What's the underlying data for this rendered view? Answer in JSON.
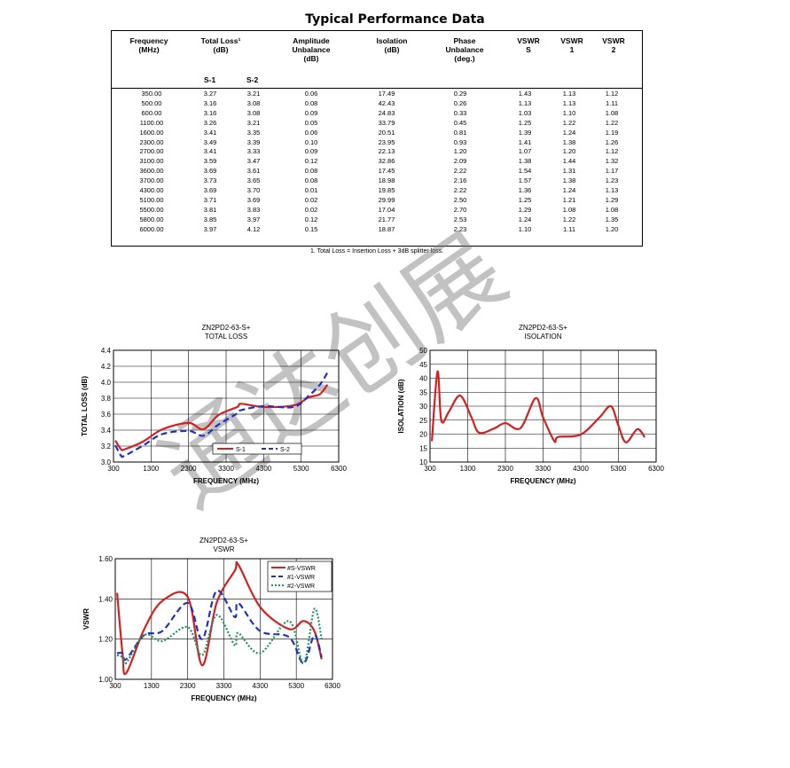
{
  "title": "Typical Performance Data",
  "table": {
    "headers": [
      {
        "key": "freq",
        "text": "Frequency\n(MHz)"
      },
      {
        "key": "tl",
        "text": "Total Loss¹\n(dB)"
      },
      {
        "key": "amp",
        "text": "Amplitude\nUnbalance\n(dB)"
      },
      {
        "key": "iso",
        "text": "Isolation\n(dB)"
      },
      {
        "key": "phase",
        "text": "Phase\nUnbalance\n(deg.)"
      },
      {
        "key": "vs",
        "text": "VSWR\nS"
      },
      {
        "key": "v1",
        "text": "VSWR\n1"
      },
      {
        "key": "v2",
        "text": "VSWR\n2"
      }
    ],
    "subheaders": [
      "S-1",
      "S-2"
    ],
    "rows": [
      [
        "350.00",
        "3.27",
        "3.21",
        "0.06",
        "17.49",
        "0.29",
        "1.43",
        "1.13",
        "1.12"
      ],
      [
        "500.00",
        "3.16",
        "3.08",
        "0.08",
        "42.43",
        "0.26",
        "1.13",
        "1.13",
        "1.11"
      ],
      [
        "600.00",
        "3.16",
        "3.08",
        "0.09",
        "24.83",
        "0.33",
        "1.03",
        "1.10",
        "1.08"
      ],
      [
        "1100.00",
        "3.26",
        "3.21",
        "0.05",
        "33.79",
        "0.45",
        "1.25",
        "1.22",
        "1.22"
      ],
      [
        "1600.00",
        "3.41",
        "3.35",
        "0.06",
        "20.51",
        "0.81",
        "1.39",
        "1.24",
        "1.19"
      ],
      [
        "2300.00",
        "3.49",
        "3.39",
        "0.10",
        "23.95",
        "0.93",
        "1.41",
        "1.38",
        "1.26"
      ],
      [
        "2700.00",
        "3.41",
        "3.33",
        "0.09",
        "22.13",
        "1.20",
        "1.07",
        "1.20",
        "1.12"
      ],
      [
        "3100.00",
        "3.59",
        "3.47",
        "0.12",
        "32.86",
        "2.09",
        "1.38",
        "1.44",
        "1.32"
      ],
      [
        "3600.00",
        "3.69",
        "3.61",
        "0.08",
        "17.45",
        "2.22",
        "1.54",
        "1.31",
        "1.17"
      ],
      [
        "3700.00",
        "3.73",
        "3.65",
        "0.08",
        "18.98",
        "2.16",
        "1.57",
        "1.38",
        "1.23"
      ],
      [
        "4300.00",
        "3.69",
        "3.70",
        "0.01",
        "19.85",
        "2.22",
        "1.36",
        "1.24",
        "1.13"
      ],
      [
        "5100.00",
        "3.71",
        "3.69",
        "0.02",
        "29.99",
        "2.50",
        "1.25",
        "1.21",
        "1.29"
      ],
      [
        "5500.00",
        "3.81",
        "3.83",
        "0.02",
        "17.04",
        "2.70",
        "1.29",
        "1.08",
        "1.08"
      ],
      [
        "5800.00",
        "3.85",
        "3.97",
        "0.12",
        "21.77",
        "2.53",
        "1.24",
        "1.22",
        "1.35"
      ],
      [
        "6000.00",
        "3.97",
        "4.12",
        "0.15",
        "18.87",
        "2.23",
        "1.10",
        "1.11",
        "1.20"
      ]
    ],
    "footnote": "1. Total Loss = Insertion Loss + 3dB splitter loss."
  },
  "watermark": "通达创展",
  "chart_data": [
    {
      "type": "line",
      "title": "ZN2PD2-63-S+\nTOTAL LOSS",
      "xlabel": "FREQUENCY (MHz)",
      "ylabel": "TOTAL LOSS (dB)",
      "xlim": [
        300,
        6300
      ],
      "ylim": [
        3.0,
        4.4
      ],
      "xticks": [
        300,
        1300,
        2300,
        3300,
        4300,
        5300,
        6300
      ],
      "yticks": [
        3.0,
        3.2,
        3.4,
        3.6,
        3.8,
        4.0,
        4.2,
        4.4
      ],
      "ytick_labels": [
        "3.0",
        "3.2",
        "3.4",
        "3.6",
        "3.8",
        "4.0",
        "4.2",
        "4.4"
      ],
      "grid": true,
      "legend": "bottom-center",
      "series": [
        {
          "name": "S-1",
          "color": "#d42020",
          "dash": "solid",
          "x": [
            350,
            500,
            600,
            1100,
            1600,
            2300,
            2700,
            3100,
            3600,
            3700,
            4300,
            5100,
            5500,
            5800,
            6000
          ],
          "y": [
            3.27,
            3.16,
            3.16,
            3.26,
            3.41,
            3.49,
            3.41,
            3.59,
            3.69,
            3.73,
            3.69,
            3.71,
            3.81,
            3.85,
            3.97
          ]
        },
        {
          "name": "S-2",
          "color": "#2030c0",
          "dash": "dashed",
          "x": [
            350,
            500,
            600,
            1100,
            1600,
            2300,
            2700,
            3100,
            3600,
            3700,
            4300,
            5100,
            5500,
            5800,
            6000
          ],
          "y": [
            3.21,
            3.08,
            3.08,
            3.21,
            3.35,
            3.39,
            3.33,
            3.47,
            3.61,
            3.65,
            3.7,
            3.69,
            3.83,
            3.97,
            4.12
          ]
        }
      ]
    },
    {
      "type": "line",
      "title": "ZN2PD2-63-S+\nISOLATION",
      "xlabel": "FREQUENCY (MHz)",
      "ylabel": "ISOLATION (dB)",
      "xlim": [
        300,
        6300
      ],
      "ylim": [
        10,
        50
      ],
      "xticks": [
        300,
        1300,
        2300,
        3300,
        4300,
        5300,
        6300
      ],
      "yticks": [
        10,
        15,
        20,
        25,
        30,
        35,
        40,
        45,
        50
      ],
      "ytick_labels": [
        "10",
        "15",
        "20",
        "25",
        "30",
        "35",
        "40",
        "45",
        "50"
      ],
      "grid": true,
      "series": [
        {
          "color": "#d42020",
          "dash": "solid",
          "x": [
            350,
            500,
            600,
            800,
            1100,
            1400,
            1600,
            2000,
            2300,
            2700,
            3100,
            3300,
            3600,
            3700,
            4300,
            4800,
            5100,
            5300,
            5500,
            5800,
            6000
          ],
          "y": [
            17.49,
            42.43,
            24.83,
            28,
            33.79,
            26,
            20.51,
            22,
            23.95,
            22.13,
            32.86,
            26,
            17.45,
            18.98,
            19.85,
            26,
            29.99,
            23,
            17.04,
            21.77,
            18.87
          ]
        }
      ]
    },
    {
      "type": "line",
      "title": "ZN2PD2-63-S+\nVSWR",
      "xlabel": "FREQUENCY (MHz)",
      "ylabel": "VSWR",
      "xlim": [
        300,
        6300
      ],
      "ylim": [
        1.0,
        1.6
      ],
      "xticks": [
        300,
        1300,
        2300,
        3300,
        4300,
        5300,
        6300
      ],
      "yticks": [
        1.0,
        1.2,
        1.4,
        1.6
      ],
      "ytick_labels": [
        "1.00",
        "1.20",
        "1.40",
        "1.60"
      ],
      "grid": true,
      "legend": "top-right",
      "series": [
        {
          "name": "#S-VSWR",
          "color": "#d42020",
          "dash": "solid",
          "x": [
            350,
            500,
            600,
            1100,
            1600,
            2300,
            2700,
            3100,
            3600,
            3700,
            4300,
            5100,
            5500,
            5800,
            6000
          ],
          "y": [
            1.43,
            1.13,
            1.03,
            1.25,
            1.39,
            1.41,
            1.07,
            1.38,
            1.54,
            1.57,
            1.36,
            1.25,
            1.29,
            1.24,
            1.1
          ]
        },
        {
          "name": "#1-VSWR",
          "color": "#2030c0",
          "dash": "dashed",
          "x": [
            350,
            500,
            600,
            1100,
            1600,
            2300,
            2700,
            3100,
            3600,
            3700,
            4300,
            5100,
            5500,
            5800,
            6000
          ],
          "y": [
            1.13,
            1.13,
            1.1,
            1.22,
            1.24,
            1.38,
            1.2,
            1.44,
            1.31,
            1.38,
            1.24,
            1.21,
            1.08,
            1.22,
            1.11
          ]
        },
        {
          "name": "#2-VSWR",
          "color": "#209060",
          "dash": "dotted",
          "x": [
            350,
            500,
            600,
            1100,
            1600,
            2300,
            2700,
            3100,
            3600,
            3700,
            4300,
            5100,
            5500,
            5800,
            6000
          ],
          "y": [
            1.12,
            1.11,
            1.08,
            1.22,
            1.19,
            1.26,
            1.12,
            1.32,
            1.17,
            1.23,
            1.13,
            1.29,
            1.08,
            1.35,
            1.2
          ]
        }
      ]
    }
  ]
}
